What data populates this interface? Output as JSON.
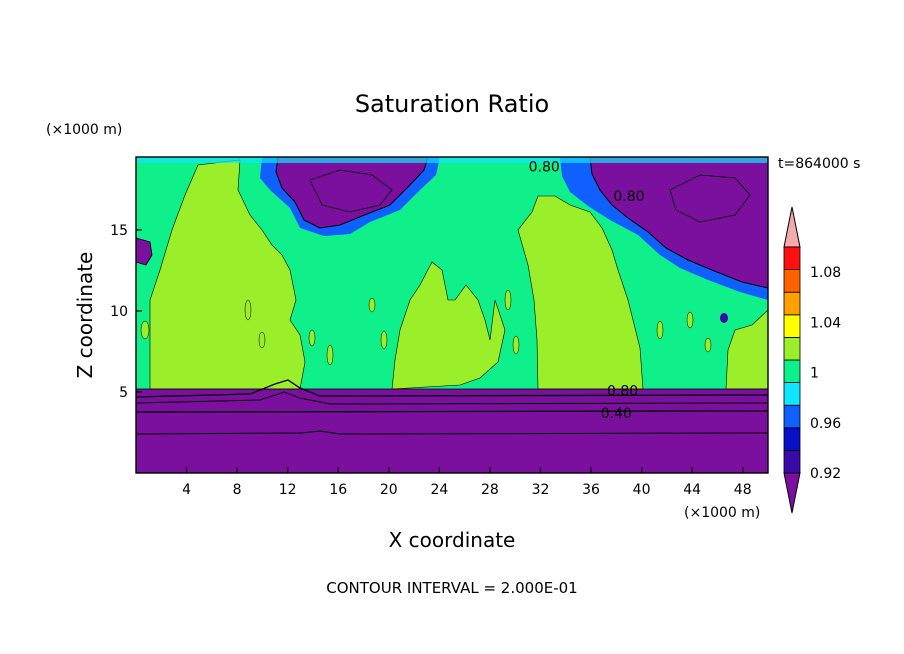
{
  "chart_data": {
    "type": "heatmap",
    "title": "Saturation Ratio",
    "xlabel": "X coordinate",
    "ylabel": "Z coordinate",
    "x_unit": "(×1000 m)",
    "y_unit": "(×1000 m)",
    "time_label": "t=864000 s",
    "footer": "CONTOUR INTERVAL = 2.000E-01",
    "xlim": [
      0,
      50
    ],
    "ylim": [
      0,
      19.5
    ],
    "x_ticks": [
      4,
      8,
      12,
      16,
      20,
      24,
      28,
      32,
      36,
      40,
      44,
      48
    ],
    "y_ticks": [
      5,
      10,
      15
    ],
    "colorbar": {
      "levels": [
        0.92,
        0.94,
        0.96,
        0.98,
        1.0,
        1.02,
        1.04,
        1.06,
        1.08,
        1.1
      ],
      "colors": [
        "#7b0f9e",
        "#3a0aa8",
        "#0a10c8",
        "#1060ff",
        "#10e6ff",
        "#10f08a",
        "#9aef2a",
        "#ffff00",
        "#ffa000",
        "#ff6000",
        "#ff1010",
        "#f4aaaa"
      ],
      "tick_labels": [
        "0.92",
        "0.96",
        "1",
        "1.04",
        "1.08"
      ],
      "tick_values": [
        0.92,
        0.96,
        1.0,
        1.04,
        1.08
      ],
      "extend": "both"
    },
    "contour_labels": [
      {
        "value": "0.80",
        "x": 38.5,
        "z": 5.1
      },
      {
        "value": "0.40",
        "x": 38.0,
        "z": 3.7
      },
      {
        "value": "0.80",
        "x": 39.0,
        "z": 17.1
      },
      {
        "value": "0.80",
        "x": 32.3,
        "z": 18.9
      }
    ],
    "regions": {
      "lower_layer": {
        "z_range": [
          0,
          5.3
        ],
        "value": 0.92
      },
      "upper_layer": {
        "z_range": [
          5.3,
          19.5
        ],
        "value": 0.99
      },
      "supersaturated_columns": [
        {
          "x_range": [
            2.5,
            12.5
          ],
          "z_range": [
            5.3,
            19.2
          ],
          "value": 1.01
        },
        {
          "x_range": [
            21.5,
            28.5
          ],
          "z_range": [
            5.3,
            13.0
          ],
          "value": 1.01
        },
        {
          "x_range": [
            31.5,
            40.5
          ],
          "z_range": [
            5.3,
            17.5
          ],
          "value": 1.01
        },
        {
          "x_range": [
            47.0,
            50.0
          ],
          "z_range": [
            5.3,
            10.5
          ],
          "value": 1.01
        }
      ],
      "dry_patches": [
        {
          "x_range": [
            12.5,
            23.5
          ],
          "z_range": [
            16.5,
            19.5
          ],
          "value": 0.8
        },
        {
          "x_range": [
            40.0,
            50.0
          ],
          "z_range": [
            12.5,
            19.5
          ],
          "value": 0.8
        },
        {
          "x_range": [
            0.0,
            1.2
          ],
          "z_range": [
            13.0,
            15.0
          ],
          "value": 0.9
        }
      ]
    }
  }
}
